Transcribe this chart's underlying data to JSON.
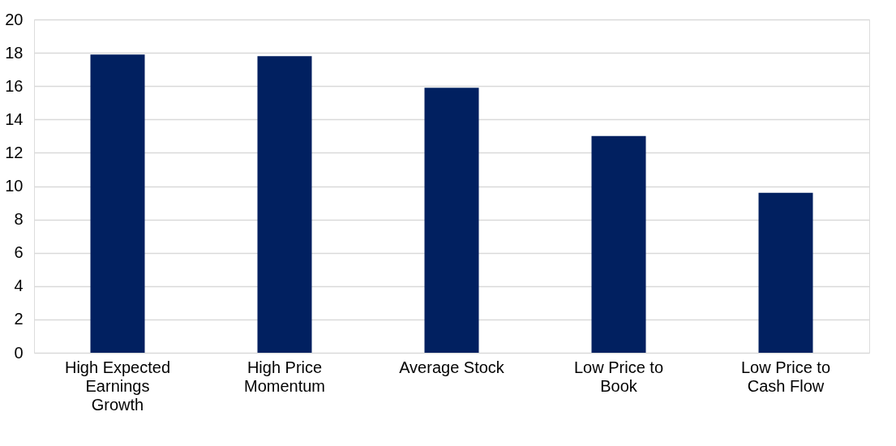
{
  "chart_data": {
    "type": "bar",
    "categories": [
      "High Expected Earnings Growth",
      "High Price Momentum",
      "Average Stock",
      "Low Price to Book",
      "Low Price to Cash Flow"
    ],
    "values": [
      17.9,
      17.8,
      15.9,
      13.0,
      9.6
    ],
    "color": "#012060",
    "ylim": [
      0,
      20
    ],
    "yticks": [
      0,
      2,
      4,
      6,
      8,
      10,
      12,
      14,
      16,
      18,
      20
    ],
    "grid": "y"
  }
}
